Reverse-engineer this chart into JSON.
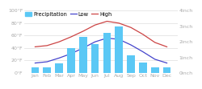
{
  "months": [
    "Jan",
    "Feb",
    "Mar",
    "Apr",
    "May",
    "Jun",
    "Jul",
    "Aug",
    "Sep",
    "Oct",
    "Nov",
    "Dec"
  ],
  "precipitation": [
    0.35,
    0.35,
    0.6,
    1.6,
    2.3,
    1.85,
    2.6,
    3.0,
    1.15,
    0.65,
    0.35,
    0.35
  ],
  "low": [
    16,
    18,
    24,
    31,
    40,
    50,
    56,
    54,
    45,
    34,
    22,
    16
  ],
  "high": [
    42,
    44,
    50,
    58,
    67,
    77,
    83,
    80,
    73,
    62,
    49,
    42
  ],
  "bar_color": "#5BC8F5",
  "low_color": "#4444cc",
  "high_color": "#cc4444",
  "grid_color": "#dddddd",
  "background_color": "#ffffff",
  "left_ylim": [
    0,
    100
  ],
  "left_yticks": [
    0,
    20,
    40,
    60,
    80,
    100
  ],
  "left_yticklabels": [
    "0°F",
    "20°F",
    "40°F",
    "60°F",
    "80°F",
    "100°F"
  ],
  "right_ylim": [
    0,
    4
  ],
  "right_yticks": [
    0,
    1,
    2,
    3,
    4
  ],
  "right_yticklabels": [
    "0inch",
    "1inch",
    "2inch",
    "3inch",
    "4inch"
  ],
  "legend_labels": [
    "Precipitation",
    "Low",
    "High"
  ],
  "fontsize": 4.8,
  "tick_fontsize": 4.5
}
